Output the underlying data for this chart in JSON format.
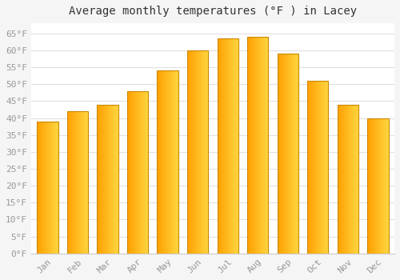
{
  "title": "Average monthly temperatures (°F ) in Lacey",
  "months": [
    "Jan",
    "Feb",
    "Mar",
    "Apr",
    "May",
    "Jun",
    "Jul",
    "Aug",
    "Sep",
    "Oct",
    "Nov",
    "Dec"
  ],
  "values": [
    39,
    42,
    44,
    48,
    54,
    60,
    63.5,
    64,
    59,
    51,
    44,
    40
  ],
  "ylim": [
    0,
    68
  ],
  "yticks": [
    0,
    5,
    10,
    15,
    20,
    25,
    30,
    35,
    40,
    45,
    50,
    55,
    60,
    65
  ],
  "ytick_labels": [
    "0°F",
    "5°F",
    "10°F",
    "15°F",
    "20°F",
    "25°F",
    "30°F",
    "35°F",
    "40°F",
    "45°F",
    "50°F",
    "55°F",
    "60°F",
    "65°F"
  ],
  "background_color": "#f5f5f5",
  "plot_bg_color": "#ffffff",
  "grid_color": "#e0e0e0",
  "title_fontsize": 10,
  "tick_fontsize": 8,
  "bar_color_left": "#FFA000",
  "bar_color_right": "#FFD040",
  "bar_edge_color": "#CC8800",
  "tick_color": "#999999"
}
